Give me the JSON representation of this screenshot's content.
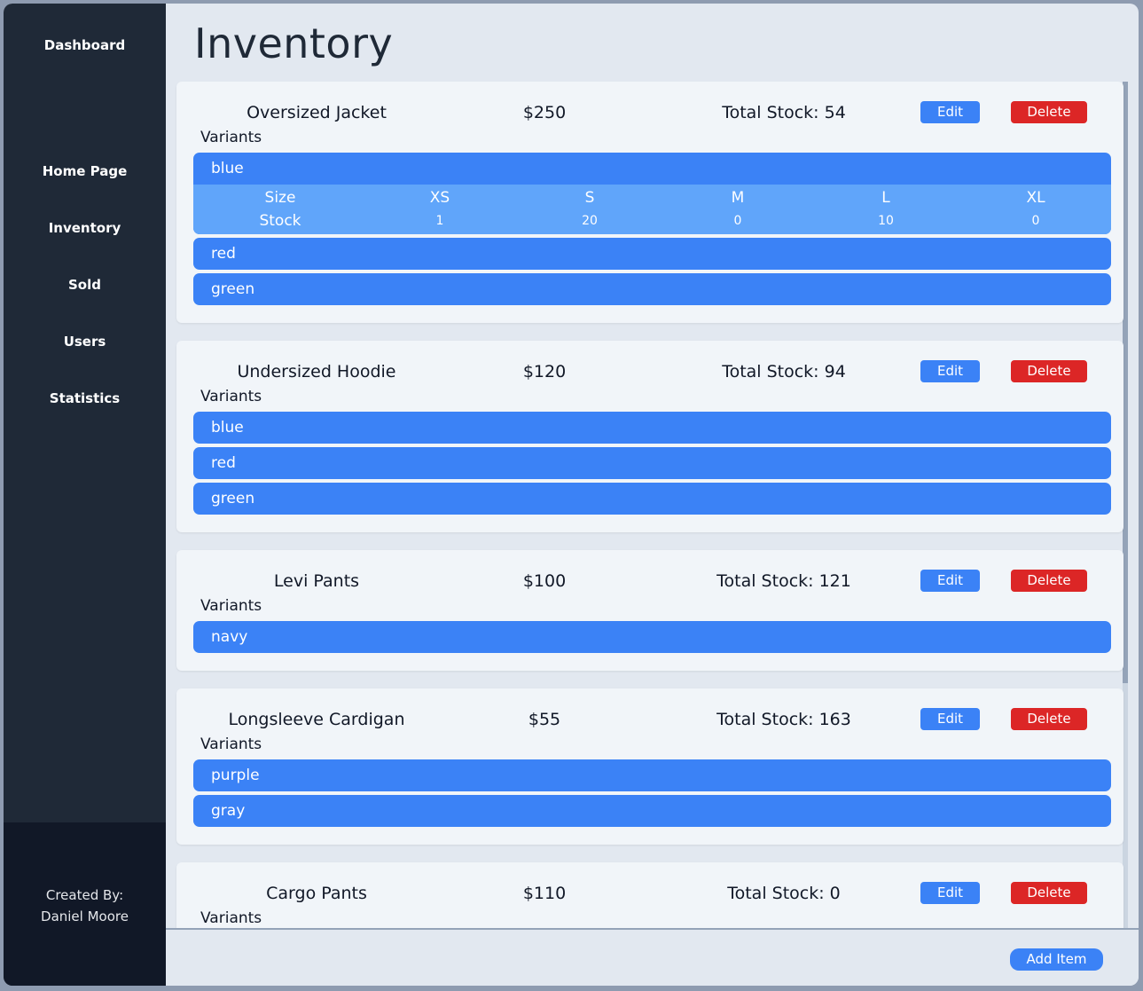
{
  "sidebar": {
    "title": "Dashboard",
    "nav": [
      {
        "label": "Home Page"
      },
      {
        "label": "Inventory"
      },
      {
        "label": "Sold"
      },
      {
        "label": "Users"
      },
      {
        "label": "Statistics"
      }
    ],
    "footer_line1": "Created By:",
    "footer_line2": "Daniel Moore"
  },
  "page": {
    "title": "Inventory"
  },
  "labels": {
    "edit": "Edit",
    "delete": "Delete",
    "variants": "Variants",
    "size": "Size",
    "stock": "Stock",
    "add_item": "Add Item"
  },
  "sizes": [
    "XS",
    "S",
    "M",
    "L",
    "XL"
  ],
  "items": [
    {
      "name": "Oversized Jacket",
      "price": "$250",
      "total_stock": "Total Stock: 54",
      "variants": [
        {
          "color": "blue",
          "expanded": true,
          "stock": [
            "1",
            "20",
            "0",
            "10",
            "0"
          ]
        },
        {
          "color": "red"
        },
        {
          "color": "green"
        }
      ]
    },
    {
      "name": "Undersized Hoodie",
      "price": "$120",
      "total_stock": "Total Stock: 94",
      "variants": [
        {
          "color": "blue"
        },
        {
          "color": "red"
        },
        {
          "color": "green"
        }
      ]
    },
    {
      "name": "Levi Pants",
      "price": "$100",
      "total_stock": "Total Stock: 121",
      "variants": [
        {
          "color": "navy"
        }
      ]
    },
    {
      "name": "Longsleeve Cardigan",
      "price": "$55",
      "total_stock": "Total Stock: 163",
      "variants": [
        {
          "color": "purple"
        },
        {
          "color": "gray"
        }
      ]
    },
    {
      "name": "Cargo Pants",
      "price": "$110",
      "total_stock": "Total Stock: 0",
      "variants": []
    }
  ],
  "colors": {
    "sidebar_bg": "#1f2937",
    "sidebar_footer_bg": "#111827",
    "accent": "#3b82f6",
    "accent_light": "#60a5fa",
    "danger": "#dc2626",
    "page_bg": "#e2e8f0",
    "card_bg": "#f1f5f9"
  }
}
